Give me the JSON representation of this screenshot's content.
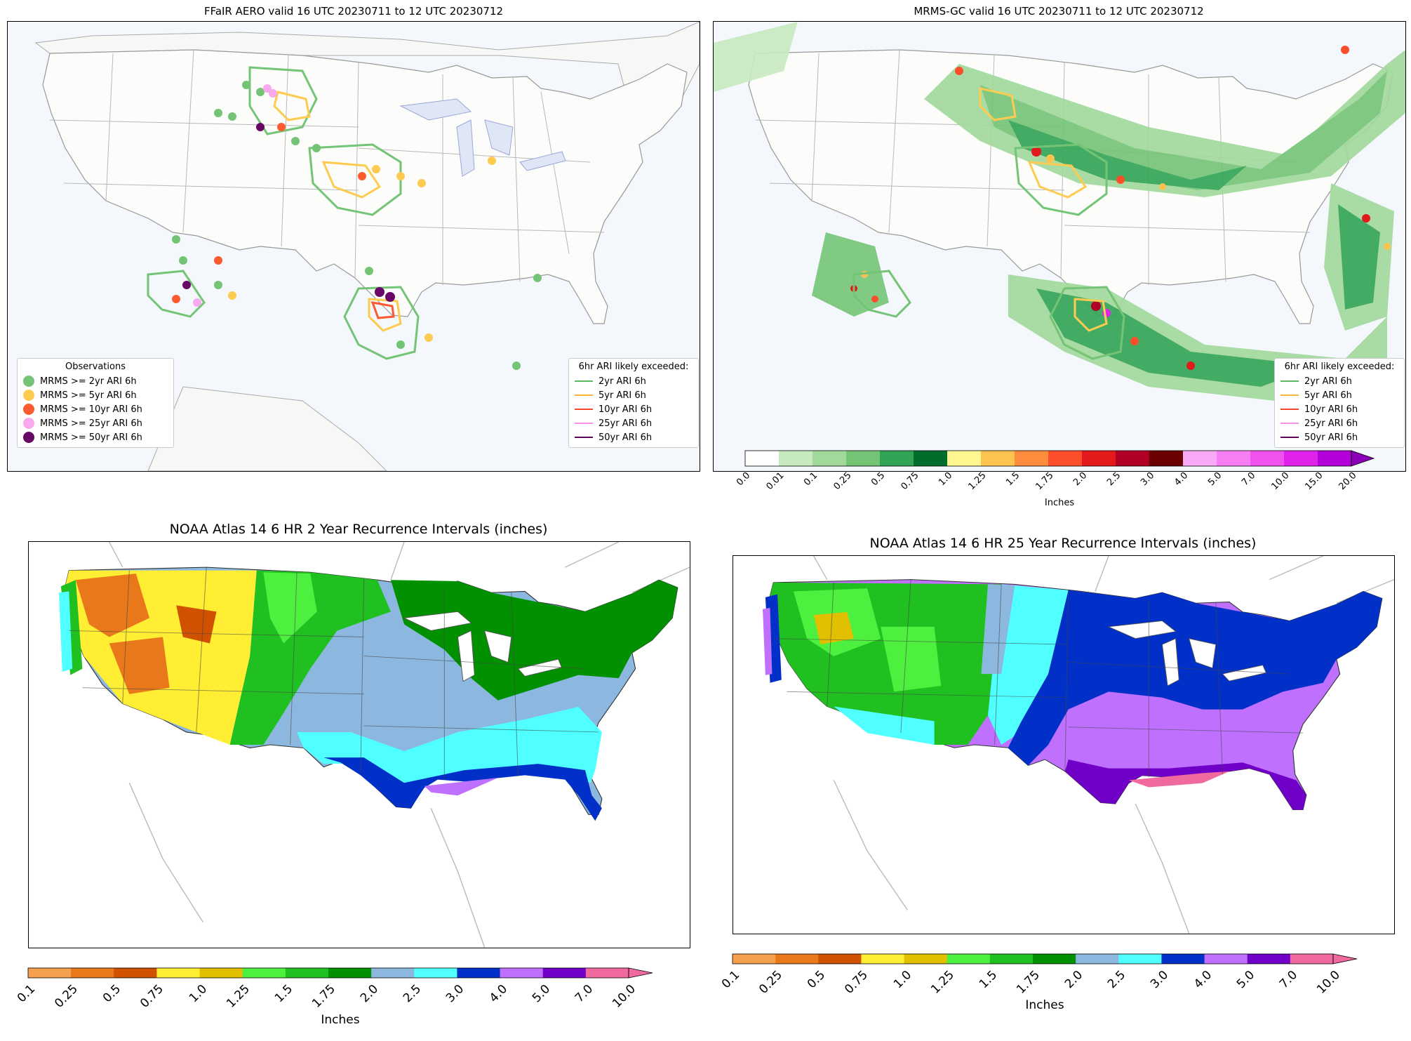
{
  "panels": {
    "ffair": {
      "title": "FFaIR AERO valid 16 UTC 20230711 to 12 UTC 20230712",
      "legend_obs": {
        "title": "Observations",
        "items": [
          {
            "label": "MRMS >= 2yr ARI 6h",
            "color": "#74c476"
          },
          {
            "label": "MRMS >= 5yr ARI 6h",
            "color": "#fdcb4f"
          },
          {
            "label": "MRMS >= 10yr ARI 6h",
            "color": "#fc5a30"
          },
          {
            "label": "MRMS >= 25yr ARI 6h",
            "color": "#f9a9ee"
          },
          {
            "label": "MRMS >= 50yr ARI 6h",
            "color": "#680765"
          }
        ]
      },
      "legend_ari": {
        "title": "6hr ARI likely exceeded:",
        "items": [
          {
            "label": "2yr ARI 6h",
            "color": "#5db863"
          },
          {
            "label": "5yr ARI 6h",
            "color": "#f9b73a"
          },
          {
            "label": "10yr ARI 6h",
            "color": "#f4462a"
          },
          {
            "label": "25yr ARI 6h",
            "color": "#f590e8"
          },
          {
            "label": "50yr ARI 6h",
            "color": "#5c0257"
          }
        ]
      }
    },
    "mrms": {
      "title": "MRMS-GC valid 16 UTC 20230711 to 12 UTC 20230712",
      "legend_ari": {
        "title": "6hr ARI likely exceeded:",
        "items": [
          {
            "label": "2yr ARI 6h",
            "color": "#5db863"
          },
          {
            "label": "5yr ARI 6h",
            "color": "#f9b73a"
          },
          {
            "label": "10yr ARI 6h",
            "color": "#f4462a"
          },
          {
            "label": "25yr ARI 6h",
            "color": "#f590e8"
          },
          {
            "label": "50yr ARI 6h",
            "color": "#5c0257"
          }
        ]
      },
      "colorbar": {
        "label": "Inches",
        "ticks": [
          "0.0",
          "0.01",
          "0.1",
          "0.25",
          "0.5",
          "0.75",
          "1.0",
          "1.25",
          "1.5",
          "1.75",
          "2.0",
          "2.5",
          "3.0",
          "4.0",
          "5.0",
          "7.0",
          "10.0",
          "15.0",
          "20.0"
        ],
        "colors": [
          "#ffffff",
          "#c7e9c0",
          "#a1d99b",
          "#74c476",
          "#31a354",
          "#006d2c",
          "#fff68f",
          "#fdc34f",
          "#fd8d3c",
          "#fc4e2a",
          "#e31a1c",
          "#b10026",
          "#6b0000",
          "#f9a9f5",
          "#f77ef2",
          "#f052ee",
          "#e023eb",
          "#b400d8",
          "#8a00b8"
        ]
      }
    },
    "atlas2": {
      "title": "NOAA Atlas 14 6 HR 2 Year Recurrence Intervals (inches)",
      "colorbar": {
        "label": "Inches",
        "ticks": [
          "0.1",
          "0.25",
          "0.5",
          "0.75",
          "1.0",
          "1.25",
          "1.5",
          "1.75",
          "2.0",
          "2.5",
          "3.0",
          "4.0",
          "5.0",
          "7.0",
          "10.0"
        ],
        "colors": [
          "#f5a04e",
          "#e8781a",
          "#d05200",
          "#ffee33",
          "#e0c000",
          "#4ef040",
          "#20c020",
          "#009000",
          "#8cb8e0",
          "#50ffff",
          "#0030c8",
          "#c070ff",
          "#7000c8",
          "#f06aa0"
        ]
      }
    },
    "atlas25": {
      "title": "NOAA Atlas 14 6 HR 25 Year Recurrence Intervals (inches)",
      "colorbar": {
        "label": "Inches",
        "ticks": [
          "0.1",
          "0.25",
          "0.5",
          "0.75",
          "1.0",
          "1.25",
          "1.5",
          "1.75",
          "2.0",
          "2.5",
          "3.0",
          "4.0",
          "5.0",
          "7.0",
          "10.0"
        ],
        "colors": [
          "#f5a04e",
          "#e8781a",
          "#d05200",
          "#ffee33",
          "#e0c000",
          "#4ef040",
          "#20c020",
          "#009000",
          "#8cb8e0",
          "#50ffff",
          "#0030c8",
          "#c070ff",
          "#7000c8",
          "#f06aa0"
        ]
      }
    }
  }
}
